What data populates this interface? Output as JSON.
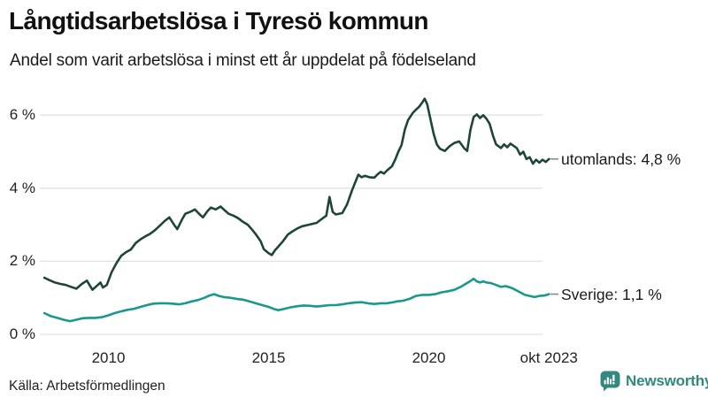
{
  "chart_data": {
    "type": "line",
    "title": "Långtidsarbetslösa i Tyresö kommun",
    "subtitle": "Andel som varit arbetslösa i minst ett år uppdelat på födelseland",
    "source": "Källa: Arbetsförmedlingen",
    "brand": "Newsworthy",
    "xlabel": "",
    "ylabel": "",
    "ylim": [
      0,
      6.6
    ],
    "xlim": [
      2008.0,
      2023.75
    ],
    "grid": "horizontal",
    "legend_position": "right-end-labels",
    "colors": {
      "grid": "#e2e2e2",
      "leader_dash": "#8a8a8a",
      "brand_teal": "#31887d"
    },
    "y_ticks": [
      {
        "label": "6 %",
        "value": 6
      },
      {
        "label": "4 %",
        "value": 4
      },
      {
        "label": "2 %",
        "value": 2
      },
      {
        "label": "0 %",
        "value": 0
      }
    ],
    "x_ticks": [
      {
        "label": "2010",
        "year": 2010
      },
      {
        "label": "2015",
        "year": 2015
      },
      {
        "label": "2020",
        "year": 2020
      },
      {
        "label": "okt 2023",
        "year": 2023.75
      }
    ],
    "series": [
      {
        "id": "utomlands",
        "name": "utomlands",
        "end_label": "utomlands: 4,8 %",
        "end_value": "4,8 %",
        "color": "#1d4639",
        "points": [
          [
            2008.0,
            1.55
          ],
          [
            2008.17,
            1.48
          ],
          [
            2008.33,
            1.42
          ],
          [
            2008.5,
            1.38
          ],
          [
            2008.67,
            1.35
          ],
          [
            2008.83,
            1.3
          ],
          [
            2009.0,
            1.25
          ],
          [
            2009.17,
            1.38
          ],
          [
            2009.33,
            1.47
          ],
          [
            2009.5,
            1.22
          ],
          [
            2009.67,
            1.35
          ],
          [
            2009.75,
            1.42
          ],
          [
            2009.83,
            1.28
          ],
          [
            2009.95,
            1.35
          ],
          [
            2010.1,
            1.7
          ],
          [
            2010.25,
            1.95
          ],
          [
            2010.4,
            2.15
          ],
          [
            2010.55,
            2.25
          ],
          [
            2010.7,
            2.32
          ],
          [
            2010.85,
            2.5
          ],
          [
            2011.0,
            2.6
          ],
          [
            2011.15,
            2.68
          ],
          [
            2011.3,
            2.75
          ],
          [
            2011.45,
            2.85
          ],
          [
            2011.6,
            2.97
          ],
          [
            2011.75,
            3.1
          ],
          [
            2011.9,
            3.2
          ],
          [
            2012.05,
            3.0
          ],
          [
            2012.15,
            2.88
          ],
          [
            2012.3,
            3.15
          ],
          [
            2012.4,
            3.3
          ],
          [
            2012.55,
            3.35
          ],
          [
            2012.7,
            3.42
          ],
          [
            2012.85,
            3.28
          ],
          [
            2012.95,
            3.2
          ],
          [
            2013.1,
            3.38
          ],
          [
            2013.2,
            3.47
          ],
          [
            2013.35,
            3.42
          ],
          [
            2013.5,
            3.5
          ],
          [
            2013.65,
            3.38
          ],
          [
            2013.75,
            3.3
          ],
          [
            2013.9,
            3.25
          ],
          [
            2014.05,
            3.18
          ],
          [
            2014.2,
            3.08
          ],
          [
            2014.35,
            3.0
          ],
          [
            2014.5,
            2.85
          ],
          [
            2014.6,
            2.74
          ],
          [
            2014.75,
            2.55
          ],
          [
            2014.85,
            2.33
          ],
          [
            2015.0,
            2.22
          ],
          [
            2015.1,
            2.17
          ],
          [
            2015.2,
            2.3
          ],
          [
            2015.3,
            2.4
          ],
          [
            2015.45,
            2.55
          ],
          [
            2015.6,
            2.73
          ],
          [
            2015.75,
            2.82
          ],
          [
            2015.9,
            2.9
          ],
          [
            2016.05,
            2.96
          ],
          [
            2016.25,
            3.0
          ],
          [
            2016.5,
            3.05
          ],
          [
            2016.65,
            3.15
          ],
          [
            2016.8,
            3.25
          ],
          [
            2016.9,
            3.76
          ],
          [
            2017.0,
            3.35
          ],
          [
            2017.1,
            3.28
          ],
          [
            2017.3,
            3.32
          ],
          [
            2017.45,
            3.56
          ],
          [
            2017.6,
            3.93
          ],
          [
            2017.7,
            4.15
          ],
          [
            2017.8,
            4.37
          ],
          [
            2017.9,
            4.3
          ],
          [
            2018.0,
            4.34
          ],
          [
            2018.15,
            4.3
          ],
          [
            2018.3,
            4.29
          ],
          [
            2018.4,
            4.38
          ],
          [
            2018.5,
            4.45
          ],
          [
            2018.6,
            4.4
          ],
          [
            2018.7,
            4.49
          ],
          [
            2018.85,
            4.6
          ],
          [
            2018.95,
            4.78
          ],
          [
            2019.05,
            5.0
          ],
          [
            2019.15,
            5.18
          ],
          [
            2019.25,
            5.6
          ],
          [
            2019.35,
            5.86
          ],
          [
            2019.5,
            6.06
          ],
          [
            2019.6,
            6.15
          ],
          [
            2019.7,
            6.23
          ],
          [
            2019.8,
            6.35
          ],
          [
            2019.87,
            6.45
          ],
          [
            2019.95,
            6.3
          ],
          [
            2020.05,
            5.9
          ],
          [
            2020.15,
            5.5
          ],
          [
            2020.25,
            5.2
          ],
          [
            2020.35,
            5.08
          ],
          [
            2020.5,
            5.02
          ],
          [
            2020.65,
            5.15
          ],
          [
            2020.8,
            5.24
          ],
          [
            2020.95,
            5.28
          ],
          [
            2021.1,
            5.1
          ],
          [
            2021.2,
            5.02
          ],
          [
            2021.3,
            5.6
          ],
          [
            2021.4,
            5.95
          ],
          [
            2021.5,
            6.02
          ],
          [
            2021.6,
            5.92
          ],
          [
            2021.7,
            6.0
          ],
          [
            2021.8,
            5.9
          ],
          [
            2021.9,
            5.76
          ],
          [
            2022.0,
            5.45
          ],
          [
            2022.1,
            5.2
          ],
          [
            2022.25,
            5.1
          ],
          [
            2022.35,
            5.2
          ],
          [
            2022.45,
            5.12
          ],
          [
            2022.55,
            5.22
          ],
          [
            2022.65,
            5.16
          ],
          [
            2022.75,
            5.1
          ],
          [
            2022.85,
            4.92
          ],
          [
            2022.95,
            5.0
          ],
          [
            2023.05,
            4.8
          ],
          [
            2023.15,
            4.85
          ],
          [
            2023.25,
            4.67
          ],
          [
            2023.35,
            4.78
          ],
          [
            2023.45,
            4.7
          ],
          [
            2023.55,
            4.78
          ],
          [
            2023.65,
            4.72
          ],
          [
            2023.75,
            4.8
          ]
        ]
      },
      {
        "id": "sverige",
        "name": "Sverige",
        "end_label": "Sverige: 1,1 %",
        "end_value": "1,1 %",
        "color": "#18998a",
        "points": [
          [
            2008.0,
            0.58
          ],
          [
            2008.2,
            0.5
          ],
          [
            2008.4,
            0.45
          ],
          [
            2008.6,
            0.4
          ],
          [
            2008.8,
            0.36
          ],
          [
            2009.0,
            0.4
          ],
          [
            2009.2,
            0.44
          ],
          [
            2009.4,
            0.45
          ],
          [
            2009.6,
            0.45
          ],
          [
            2009.8,
            0.47
          ],
          [
            2010.0,
            0.52
          ],
          [
            2010.2,
            0.58
          ],
          [
            2010.4,
            0.63
          ],
          [
            2010.6,
            0.67
          ],
          [
            2010.8,
            0.7
          ],
          [
            2011.0,
            0.75
          ],
          [
            2011.2,
            0.8
          ],
          [
            2011.4,
            0.84
          ],
          [
            2011.6,
            0.85
          ],
          [
            2011.8,
            0.85
          ],
          [
            2012.0,
            0.84
          ],
          [
            2012.2,
            0.82
          ],
          [
            2012.4,
            0.85
          ],
          [
            2012.6,
            0.9
          ],
          [
            2012.8,
            0.94
          ],
          [
            2013.0,
            1.0
          ],
          [
            2013.15,
            1.06
          ],
          [
            2013.3,
            1.1
          ],
          [
            2013.45,
            1.05
          ],
          [
            2013.6,
            1.02
          ],
          [
            2013.8,
            1.0
          ],
          [
            2014.0,
            0.97
          ],
          [
            2014.2,
            0.95
          ],
          [
            2014.4,
            0.9
          ],
          [
            2014.6,
            0.85
          ],
          [
            2014.8,
            0.8
          ],
          [
            2015.0,
            0.75
          ],
          [
            2015.15,
            0.7
          ],
          [
            2015.3,
            0.66
          ],
          [
            2015.5,
            0.7
          ],
          [
            2015.7,
            0.74
          ],
          [
            2015.9,
            0.77
          ],
          [
            2016.1,
            0.79
          ],
          [
            2016.3,
            0.78
          ],
          [
            2016.5,
            0.76
          ],
          [
            2016.7,
            0.78
          ],
          [
            2016.9,
            0.8
          ],
          [
            2017.1,
            0.8
          ],
          [
            2017.3,
            0.82
          ],
          [
            2017.5,
            0.85
          ],
          [
            2017.7,
            0.87
          ],
          [
            2017.9,
            0.88
          ],
          [
            2018.1,
            0.85
          ],
          [
            2018.3,
            0.83
          ],
          [
            2018.5,
            0.85
          ],
          [
            2018.7,
            0.85
          ],
          [
            2018.9,
            0.88
          ],
          [
            2019.0,
            0.9
          ],
          [
            2019.2,
            0.92
          ],
          [
            2019.4,
            0.97
          ],
          [
            2019.6,
            1.05
          ],
          [
            2019.8,
            1.08
          ],
          [
            2020.0,
            1.08
          ],
          [
            2020.2,
            1.1
          ],
          [
            2020.4,
            1.15
          ],
          [
            2020.6,
            1.18
          ],
          [
            2020.8,
            1.22
          ],
          [
            2021.0,
            1.3
          ],
          [
            2021.15,
            1.38
          ],
          [
            2021.3,
            1.46
          ],
          [
            2021.4,
            1.52
          ],
          [
            2021.5,
            1.45
          ],
          [
            2021.6,
            1.42
          ],
          [
            2021.7,
            1.45
          ],
          [
            2021.8,
            1.42
          ],
          [
            2021.95,
            1.4
          ],
          [
            2022.1,
            1.35
          ],
          [
            2022.25,
            1.3
          ],
          [
            2022.4,
            1.32
          ],
          [
            2022.55,
            1.28
          ],
          [
            2022.7,
            1.22
          ],
          [
            2022.85,
            1.15
          ],
          [
            2023.0,
            1.08
          ],
          [
            2023.15,
            1.05
          ],
          [
            2023.3,
            1.02
          ],
          [
            2023.45,
            1.05
          ],
          [
            2023.6,
            1.06
          ],
          [
            2023.75,
            1.1
          ]
        ]
      }
    ]
  }
}
